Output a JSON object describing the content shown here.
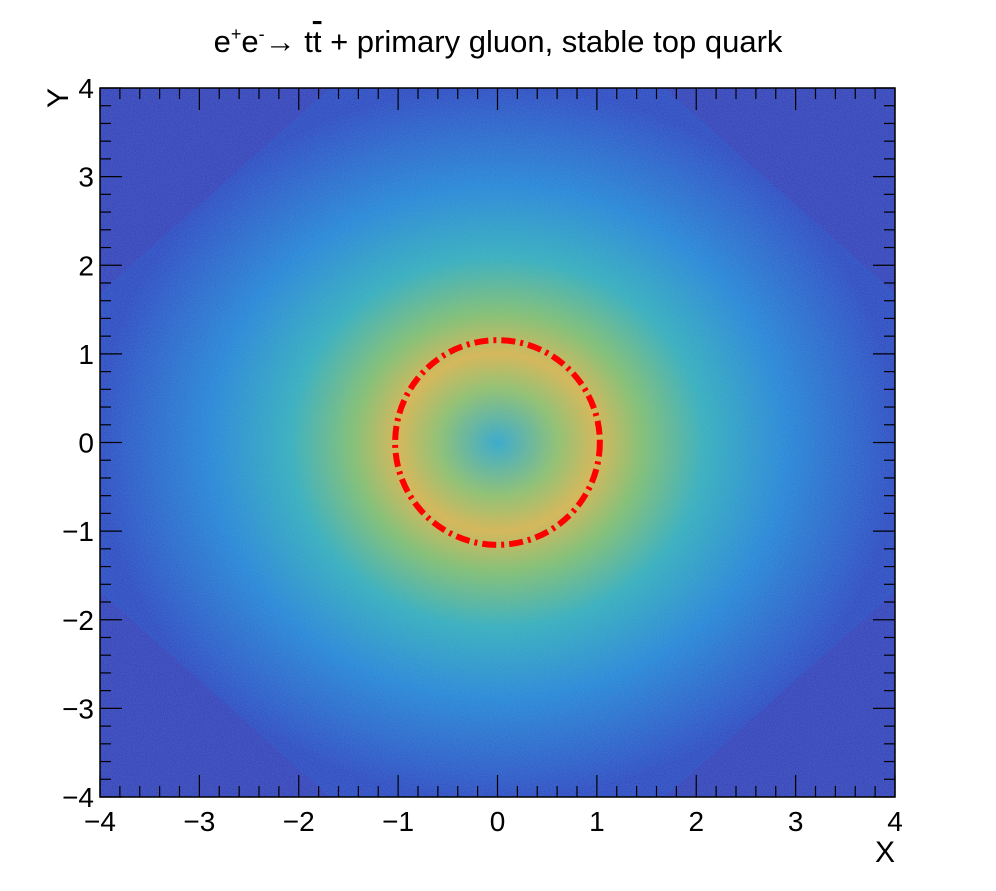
{
  "chart_data": {
    "type": "heatmap",
    "title_parts": [
      "e",
      "+",
      "e",
      "-",
      "→ t",
      "t",
      " + primary gluon, stable top quark"
    ],
    "xlabel": "X",
    "ylabel": "Y",
    "xlim": [
      -4,
      4
    ],
    "ylim": [
      -4,
      4
    ],
    "xticks": [
      -4,
      -3,
      -2,
      -1,
      0,
      1,
      2,
      3,
      4
    ],
    "yticks": [
      -4,
      -3,
      -2,
      -1,
      0,
      1,
      2,
      3,
      4
    ],
    "xtick_labels": [
      "−4",
      "−3",
      "−2",
      "−1",
      "0",
      "1",
      "2",
      "3",
      "4"
    ],
    "ytick_labels": [
      "−4",
      "−3",
      "−2",
      "−1",
      "0",
      "1",
      "2",
      "3",
      "4"
    ],
    "grid": false,
    "colorscale": [
      "#2f3fc4",
      "#1e6fe0",
      "#1aa0d8",
      "#36b9b0",
      "#8cc36c",
      "#e0b84a"
    ],
    "density_model": {
      "ring_radius": 1.0,
      "ring_width": 0.9,
      "center_value": 0.45,
      "outer_octagon_radius": 4.35
    },
    "overlay_circle": {
      "center": [
        0,
        0
      ],
      "radius": 1.03,
      "color": "#ff0000",
      "style": "dash-dot"
    }
  }
}
